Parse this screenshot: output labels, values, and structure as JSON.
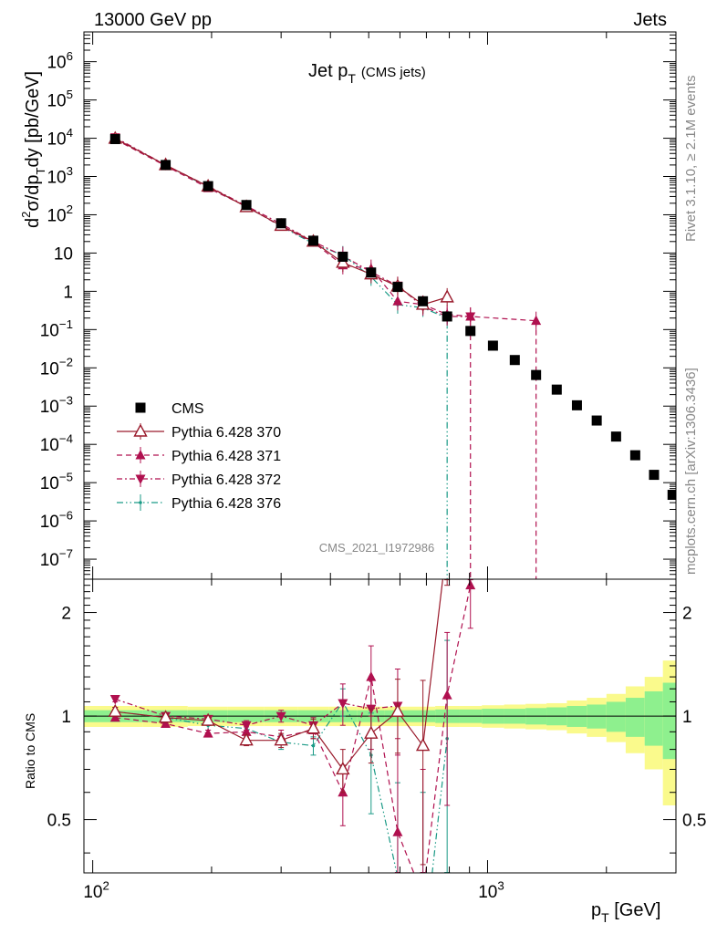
{
  "header": {
    "left": "13000 GeV pp",
    "right": "Jets",
    "title_main": "Jet p",
    "title_sub": "T",
    "title_paren": "(CMS jets)",
    "watermark": "CMS_2021_I1972986",
    "side_top": "Rivet 3.1.10, ≥ 2.1M events",
    "side_bottom": "mcplots.cern.ch [arXiv:1306.3436]"
  },
  "colors": {
    "cms": "#000000",
    "p370": "#9a1b2c",
    "p371": "#b0104f",
    "p372": "#b0104f",
    "p376": "#1a9a86",
    "band_inner": "#8ef08e",
    "band_outer": "#fafa8c"
  },
  "legend": [
    {
      "key": "cms",
      "label": "CMS"
    },
    {
      "key": "p370",
      "label": "Pythia 6.428 370"
    },
    {
      "key": "p371",
      "label": "Pythia 6.428 371"
    },
    {
      "key": "p372",
      "label": "Pythia 6.428 372"
    },
    {
      "key": "p376",
      "label": "Pythia 6.428 376"
    }
  ],
  "chart_data": [
    {
      "type": "scatter",
      "xlabel": "p_T [GeV]",
      "ylabel": "d²σ/dp_T dy [pb/GeV]",
      "x_scale": "log",
      "y_scale": "log",
      "xlim": [
        95,
        3000
      ],
      "ylim": [
        3e-08,
        6000000.0
      ],
      "x_major_ticks": [
        {
          "value": 100,
          "label": "10",
          "sup": "2"
        },
        {
          "value": 1000,
          "label": "10",
          "sup": "3"
        }
      ],
      "y_tick_labels": [
        {
          "value": 1000000.0,
          "label": "10",
          "sup": "6"
        },
        {
          "value": 100000.0,
          "label": "10",
          "sup": "5"
        },
        {
          "value": 10000.0,
          "label": "10",
          "sup": "4"
        },
        {
          "value": 1000.0,
          "label": "10",
          "sup": "3"
        },
        {
          "value": 100.0,
          "label": "10",
          "sup": "2"
        },
        {
          "value": 10,
          "label": "10",
          "sup": ""
        },
        {
          "value": 1,
          "label": "1",
          "sup": ""
        },
        {
          "value": 0.1,
          "label": "10",
          "sup": "−1"
        },
        {
          "value": 0.01,
          "label": "10",
          "sup": "−2"
        },
        {
          "value": 0.001,
          "label": "10",
          "sup": "−3"
        },
        {
          "value": 0.0001,
          "label": "10",
          "sup": "−4"
        },
        {
          "value": 1e-05,
          "label": "10",
          "sup": "−5"
        },
        {
          "value": 1e-06,
          "label": "10",
          "sup": "−6"
        },
        {
          "value": 1e-07,
          "label": "10",
          "sup": "−7"
        }
      ],
      "series": [
        {
          "key": "cms",
          "name": "CMS",
          "x": [
            114,
            153,
            196,
            245,
            300,
            362,
            430,
            507,
            592,
            686,
            790,
            905,
            1032,
            1172,
            1327,
            1497,
            1684,
            1890,
            2116,
            2366,
            2640,
            2941
          ],
          "y": [
            9500,
            2000,
            560,
            180,
            60,
            21,
            8.0,
            3.1,
            1.3,
            0.55,
            0.22,
            0.092,
            0.038,
            0.016,
            0.0065,
            0.0027,
            0.00105,
            0.00042,
            0.00016,
            5.2e-05,
            1.6e-05,
            4.8e-06
          ]
        },
        {
          "key": "p370",
          "name": "Pythia 6.428 370",
          "x": [
            114,
            153,
            196,
            245,
            300,
            362,
            430,
            507,
            592,
            686,
            790
          ],
          "y": [
            9800,
            2000,
            550,
            160,
            52,
            20,
            5.6,
            2.8,
            1.35,
            0.45,
            0.7
          ]
        },
        {
          "key": "p371",
          "name": "Pythia 6.428 371",
          "x": [
            114,
            153,
            196,
            245,
            300,
            362,
            430,
            507,
            592,
            686,
            790,
            905,
            1327
          ],
          "y": [
            9300,
            1900,
            500,
            165,
            50,
            19,
            4.8,
            3.9,
            0.55,
            0.45,
            0.25,
            0.22,
            0.17
          ]
        },
        {
          "key": "p372",
          "name": "Pythia 6.428 372",
          "x": [
            114,
            153,
            196,
            245,
            300,
            362,
            430,
            507,
            592,
            686,
            790,
            905
          ],
          "y": [
            10500,
            2000,
            560,
            170,
            58,
            20,
            8.5,
            3.2,
            1.4,
            0.4,
            0.22,
            0.22
          ]
        },
        {
          "key": "p376",
          "name": "Pythia 6.428 376",
          "x": [
            114,
            153,
            196,
            245,
            300,
            362,
            430,
            507,
            592,
            686,
            790
          ],
          "y": [
            9800,
            2000,
            530,
            165,
            50,
            17.5,
            8.8,
            2.4,
            0.45,
            0.37,
            0.2
          ]
        }
      ]
    },
    {
      "type": "line",
      "xlabel": "p_T [GeV]",
      "ylabel": "Ratio to CMS",
      "x_scale": "log",
      "xlim": [
        95,
        3000
      ],
      "ylim": [
        0.35,
        2.5
      ],
      "y_tick_labels": [
        {
          "value": 0.5,
          "label": "0.5"
        },
        {
          "value": 1,
          "label": "1"
        },
        {
          "value": 2,
          "label": "2"
        }
      ],
      "band": {
        "x_edges": [
          95,
          134,
          174,
          220,
          272,
          331,
          396,
          468,
          548,
          638,
          737,
          846,
          967,
          1101,
          1248,
          1410,
          1588,
          1784,
          2000,
          2238,
          2500,
          2780,
          3000
        ],
        "inner": [
          0.04,
          0.04,
          0.04,
          0.04,
          0.04,
          0.04,
          0.04,
          0.04,
          0.04,
          0.04,
          0.045,
          0.045,
          0.05,
          0.05,
          0.055,
          0.06,
          0.07,
          0.08,
          0.1,
          0.13,
          0.18,
          0.25
        ],
        "outer": [
          0.07,
          0.07,
          0.065,
          0.065,
          0.065,
          0.065,
          0.065,
          0.065,
          0.065,
          0.065,
          0.07,
          0.07,
          0.075,
          0.08,
          0.085,
          0.09,
          0.11,
          0.13,
          0.16,
          0.22,
          0.3,
          0.45
        ]
      },
      "series": [
        {
          "key": "p370",
          "name": "Pythia 6.428 370",
          "x": [
            114,
            153,
            196,
            245,
            300,
            362,
            430,
            507,
            592,
            686,
            790
          ],
          "y": [
            1.03,
            0.99,
            0.97,
            0.85,
            0.85,
            0.92,
            0.7,
            0.89,
            1.03,
            0.82,
            3.2
          ]
        },
        {
          "key": "p371",
          "name": "Pythia 6.428 371",
          "x": [
            114,
            153,
            196,
            245,
            300,
            362,
            430,
            507,
            592,
            686,
            790,
            905
          ],
          "y": [
            0.99,
            0.95,
            0.89,
            0.9,
            0.87,
            0.91,
            0.6,
            1.3,
            0.46,
            0.3,
            1.15,
            2.4
          ]
        },
        {
          "key": "p372",
          "name": "Pythia 6.428 372",
          "x": [
            114,
            153,
            196,
            245,
            300,
            362,
            430,
            507,
            592
          ],
          "y": [
            1.12,
            1.0,
            0.98,
            0.94,
            1.0,
            0.94,
            1.09,
            1.05,
            1.07
          ]
        },
        {
          "key": "p376",
          "name": "Pythia 6.428 376",
          "x": [
            114,
            153,
            196,
            245,
            300,
            362,
            430,
            507,
            592,
            686,
            790
          ],
          "y": [
            1.03,
            0.99,
            0.94,
            0.92,
            0.84,
            0.82,
            1.1,
            0.77,
            0.34,
            0.2,
            0.86
          ]
        }
      ]
    }
  ]
}
